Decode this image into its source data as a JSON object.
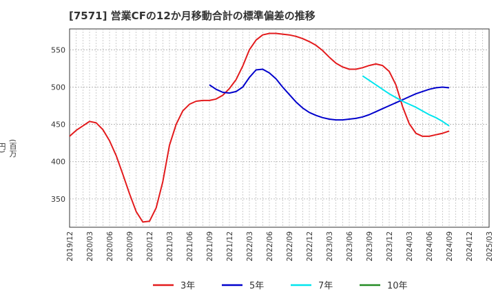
{
  "chart_data": {
    "type": "line",
    "title": "[7571]  営業CFの12か月移動合計の標準偏差の推移",
    "ylabel": "(百万円)",
    "xlabel": "",
    "ylim": [
      312,
      578
    ],
    "yticks": [
      350,
      400,
      450,
      500,
      550
    ],
    "xticks": [
      "2019/12",
      "2020/03",
      "2020/06",
      "2020/09",
      "2020/12",
      "2021/03",
      "2021/06",
      "2021/09",
      "2021/12",
      "2022/03",
      "2022/06",
      "2022/09",
      "2022/12",
      "2023/03",
      "2023/06",
      "2023/09",
      "2023/12",
      "2024/03",
      "2024/06",
      "2024/09",
      "2024/12",
      "2025/03"
    ],
    "grid": true,
    "legend_position": "bottom",
    "series": [
      {
        "name": "3年",
        "color": "#e31a1c",
        "x": [
          "2019/12",
          "2020/01",
          "2020/02",
          "2020/03",
          "2020/04",
          "2020/05",
          "2020/06",
          "2020/07",
          "2020/08",
          "2020/09",
          "2020/10",
          "2020/11",
          "2020/12",
          "2021/01",
          "2021/02",
          "2021/03",
          "2021/04",
          "2021/05",
          "2021/06",
          "2021/07",
          "2021/08",
          "2021/09",
          "2021/10",
          "2021/11",
          "2021/12",
          "2022/01",
          "2022/02",
          "2022/03",
          "2022/04",
          "2022/05",
          "2022/06",
          "2022/07",
          "2022/08",
          "2022/09",
          "2022/10",
          "2022/11",
          "2022/12",
          "2023/01",
          "2023/02",
          "2023/03",
          "2023/04",
          "2023/05",
          "2023/06",
          "2023/07",
          "2023/08",
          "2023/09",
          "2023/10",
          "2023/11",
          "2023/12",
          "2024/01",
          "2024/02",
          "2024/03",
          "2024/04",
          "2024/05",
          "2024/06",
          "2024/07",
          "2024/08",
          "2024/09"
        ],
        "values": [
          434,
          442,
          448,
          454,
          452,
          443,
          428,
          408,
          383,
          357,
          333,
          319,
          320,
          338,
          373,
          422,
          450,
          468,
          477,
          481,
          482,
          482,
          484,
          489,
          498,
          510,
          528,
          550,
          563,
          570,
          572,
          572,
          571,
          570,
          568,
          565,
          561,
          556,
          549,
          540,
          532,
          527,
          524,
          524,
          526,
          529,
          531,
          529,
          521,
          503,
          474,
          451,
          438,
          434,
          434,
          436,
          438,
          441
        ]
      },
      {
        "name": "5年",
        "color": "#0000cc",
        "x": [
          "2021/09",
          "2021/10",
          "2021/11",
          "2021/12",
          "2022/01",
          "2022/02",
          "2022/03",
          "2022/04",
          "2022/05",
          "2022/06",
          "2022/07",
          "2022/08",
          "2022/09",
          "2022/10",
          "2022/11",
          "2022/12",
          "2023/01",
          "2023/02",
          "2023/03",
          "2023/04",
          "2023/05",
          "2023/06",
          "2023/07",
          "2023/08",
          "2023/09",
          "2023/10",
          "2023/11",
          "2023/12",
          "2024/01",
          "2024/02",
          "2024/03",
          "2024/04",
          "2024/05",
          "2024/06",
          "2024/07",
          "2024/08",
          "2024/09"
        ],
        "values": [
          503,
          497,
          493,
          492,
          494,
          500,
          513,
          523,
          524,
          519,
          511,
          500,
          490,
          480,
          472,
          466,
          462,
          459,
          457,
          456,
          456,
          457,
          458,
          460,
          463,
          467,
          471,
          475,
          479,
          483,
          487,
          491,
          494,
          497,
          499,
          500,
          499
        ]
      },
      {
        "name": "7年",
        "color": "#00e5ee",
        "x": [
          "2023/08",
          "2023/09",
          "2023/10",
          "2023/11",
          "2023/12",
          "2024/01",
          "2024/02",
          "2024/03",
          "2024/04",
          "2024/05",
          "2024/06",
          "2024/07",
          "2024/08",
          "2024/09"
        ],
        "values": [
          515,
          509,
          503,
          497,
          491,
          486,
          481,
          477,
          473,
          468,
          463,
          459,
          454,
          448
        ]
      },
      {
        "name": "10年",
        "color": "#228b22",
        "x": [],
        "values": []
      }
    ]
  }
}
